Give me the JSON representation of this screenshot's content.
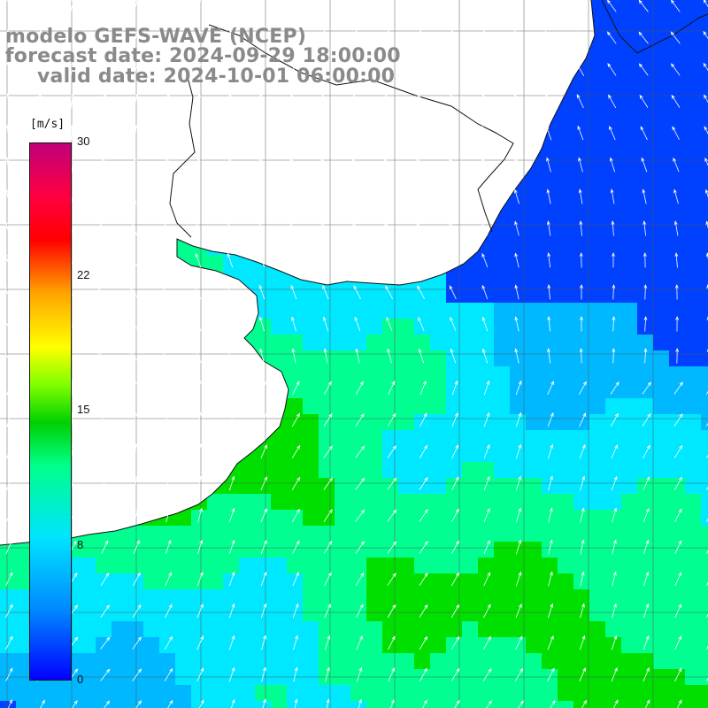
{
  "title": {
    "line1": "modelo GEFS-WAVE (NCEP)",
    "line2": "forecast date: 2024-09-29 18:00:00",
    "line3": "valid date: 2024-10-01 06:00:00"
  },
  "legend": {
    "unit": "[m/s]",
    "ticks": [
      "30",
      "22",
      "15",
      "8",
      "0"
    ],
    "colors": [
      "#0000ff",
      "#0088ff",
      "#00e4ff",
      "#00ff88",
      "#00d000",
      "#7fff00",
      "#ffff00",
      "#ffa500",
      "#ff0000",
      "#c0007a"
    ]
  },
  "map": {
    "variable": "wind speed and direction",
    "ocean_colors": {
      "low": "#0040ff",
      "mid_low": "#00b8ff",
      "mid": "#00e8ff",
      "mid_high": "#00ff90",
      "high": "#00e000"
    },
    "land_color": "#ffffff",
    "grid": true
  }
}
